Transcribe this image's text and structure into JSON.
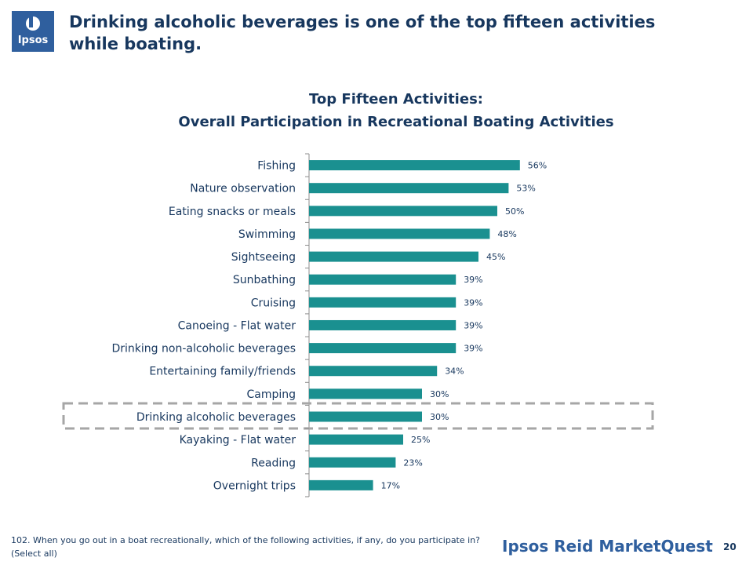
{
  "header": {
    "logo_text": "Ipsos",
    "title": "Drinking alcoholic beverages is one of the top fifteen activities while boating."
  },
  "chart_data": {
    "type": "bar",
    "orientation": "horizontal",
    "title": "Top Fifteen Activities:",
    "subtitle": "Overall Participation in Recreational Boating Activities",
    "categories": [
      "Fishing",
      "Nature observation",
      "Eating snacks or meals",
      "Swimming",
      "Sightseeing",
      "Sunbathing",
      "Cruising",
      "Canoeing - Flat water",
      "Drinking non-alcoholic beverages",
      "Entertaining family/friends",
      "Camping",
      "Drinking alcoholic beverages",
      "Kayaking - Flat water",
      "Reading",
      "Overnight trips"
    ],
    "values": [
      56,
      53,
      50,
      48,
      45,
      39,
      39,
      39,
      39,
      34,
      30,
      30,
      25,
      23,
      17
    ],
    "value_labels": [
      "56%",
      "53%",
      "50%",
      "48%",
      "45%",
      "39%",
      "39%",
      "39%",
      "39%",
      "34%",
      "30%",
      "30%",
      "25%",
      "23%",
      "17%"
    ],
    "xlim": [
      0,
      100
    ],
    "bar_color": "#1a9090",
    "highlighted_category": "Drinking alcoholic beverages",
    "highlight_color": "#a6a6a6",
    "grid": false
  },
  "footer": {
    "footnote": "102. When you go out in a boat recreationally, which of the following activities, if any, do you participate in? (Select all)",
    "brand": "Ipsos Reid MarketQuest",
    "page_number": "20"
  }
}
